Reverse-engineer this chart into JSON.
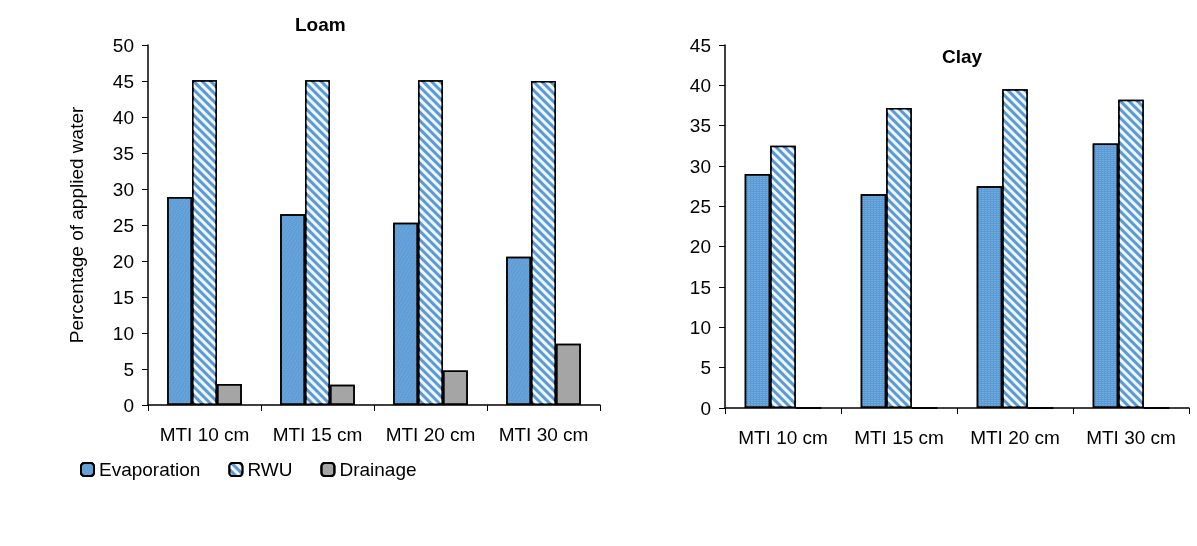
{
  "chart_data": [
    {
      "type": "bar",
      "title": "Loam",
      "ylabel": "Percentage of applied water",
      "categories": [
        "MTI 10 cm",
        "MTI 15 cm",
        "MTI 20 cm",
        "MTI 30 cm"
      ],
      "series": [
        {
          "name": "Evaporation",
          "color": "#5b9bd5",
          "values": [
            28.9,
            26.5,
            25.3,
            20.6
          ]
        },
        {
          "name": "RWU",
          "color": "#5b9bd5",
          "values": [
            45.1,
            45.1,
            45.1,
            45.0
          ]
        },
        {
          "name": "Drainage",
          "color": "#a5a5a5",
          "values": [
            2.9,
            2.8,
            4.8,
            8.5
          ]
        }
      ],
      "ylim": [
        0,
        50
      ],
      "yticks": [
        0,
        5,
        10,
        15,
        20,
        25,
        30,
        35,
        40,
        45,
        50
      ],
      "grid": false,
      "legend": "bottom left"
    },
    {
      "type": "bar",
      "title": "Clay",
      "categories": [
        "MTI 10 cm",
        "MTI 15 cm",
        "MTI 20 cm",
        "MTI 30 cm"
      ],
      "series": [
        {
          "color": "#5b9bd5",
          "values": [
            29.0,
            26.5,
            27.5,
            32.8
          ]
        },
        {
          "color": "#5b9bd5",
          "values": [
            32.5,
            37.2,
            39.5,
            38.2
          ]
        },
        {
          "color": "#a5a5a5",
          "values": [
            0,
            0,
            0,
            0
          ]
        }
      ],
      "ylim": [
        0,
        45
      ],
      "yticks": [
        0,
        5,
        10,
        15,
        20,
        25,
        30,
        35,
        40,
        45
      ],
      "grid": false,
      "legend": false
    }
  ]
}
